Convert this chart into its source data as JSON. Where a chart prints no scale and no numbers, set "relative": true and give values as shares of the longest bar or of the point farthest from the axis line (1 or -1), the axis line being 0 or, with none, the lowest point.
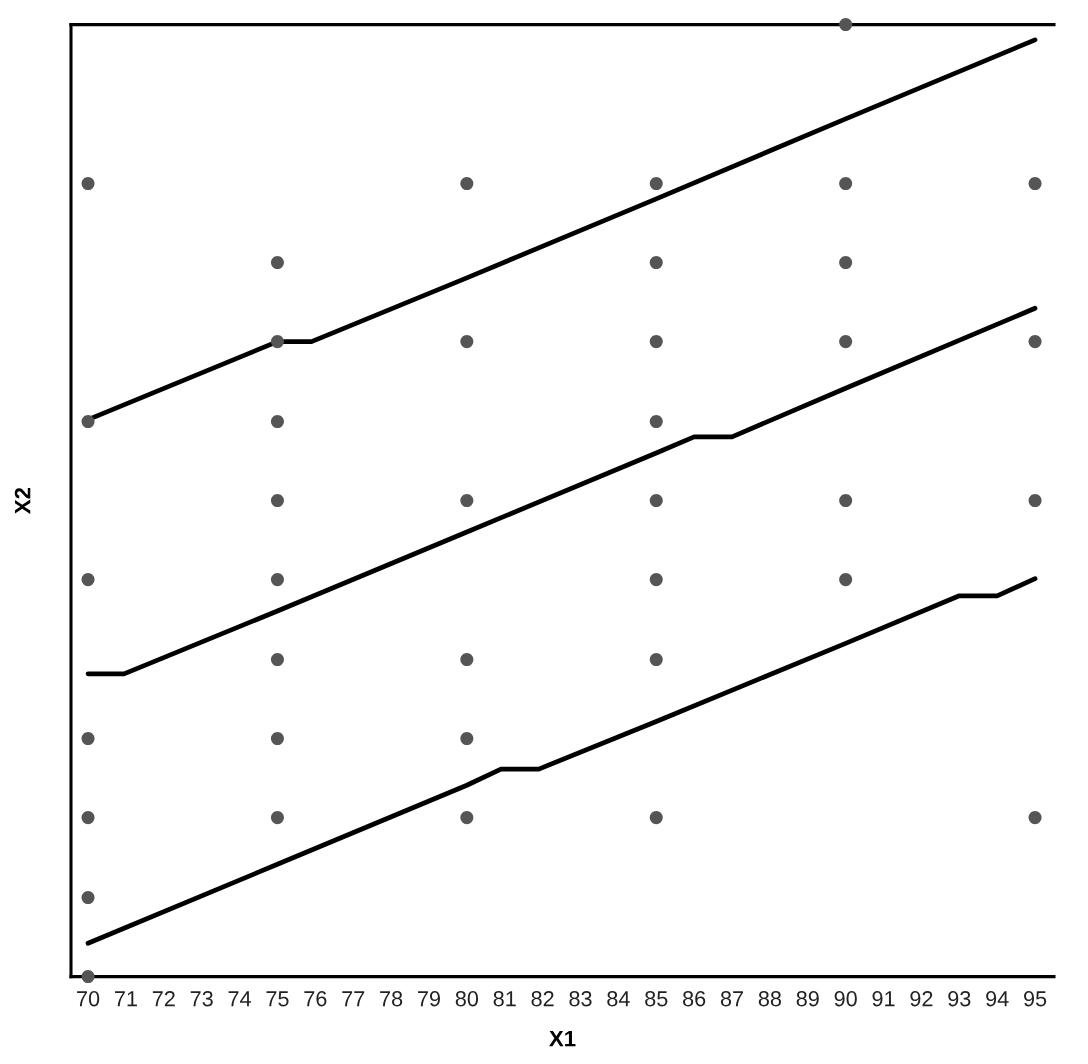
{
  "chart_data": {
    "type": "scatter",
    "xlabel": "X1",
    "ylabel": "X2",
    "relative": true,
    "tick_labels": "x",
    "xlim": [
      69.55,
      95.5
    ],
    "xticks": [
      70,
      71,
      72,
      73,
      74,
      75,
      76,
      77,
      78,
      79,
      80,
      81,
      82,
      83,
      84,
      85,
      86,
      87,
      88,
      89,
      90,
      91,
      92,
      93,
      94,
      95
    ],
    "series": [
      {
        "color": "#555555",
        "marker": "circle",
        "x": [
          70,
          70,
          70,
          70,
          70,
          70,
          70,
          75,
          75,
          75,
          75,
          75,
          75,
          75,
          75,
          80,
          80,
          80,
          80,
          80,
          80,
          85,
          85,
          85,
          85,
          85,
          85,
          85,
          85,
          90,
          90,
          90,
          90,
          90,
          90,
          95,
          95,
          95,
          95
        ],
        "values": [
          0.833,
          0.583,
          0.417,
          0.25,
          0.167,
          0.083,
          0,
          0.75,
          0.667,
          0.583,
          0.5,
          0.417,
          0.333,
          0.25,
          0.167,
          0.833,
          0.667,
          0.5,
          0.333,
          0.25,
          0.167,
          0.833,
          0.75,
          0.667,
          0.583,
          0.5,
          0.417,
          0.333,
          0.167,
          1,
          0.833,
          0.75,
          0.667,
          0.5,
          0.417,
          0.833,
          0.667,
          0.5,
          0.167
        ]
      },
      {
        "type": "line",
        "color": "#000000",
        "marker": "none",
        "line_style": "solid",
        "x": [
          70,
          75,
          75.9,
          80,
          85,
          90,
          95
        ],
        "values": [
          0.585,
          0.667,
          0.667,
          0.734,
          0.817,
          0.901,
          0.984
        ]
      },
      {
        "type": "line",
        "color": "#000000",
        "marker": "none",
        "line_style": "solid",
        "x": [
          70,
          70.95,
          75,
          80,
          85,
          86,
          87,
          90,
          95
        ],
        "values": [
          0.318,
          0.318,
          0.384,
          0.467,
          0.55,
          0.567,
          0.567,
          0.618,
          0.702
        ]
      },
      {
        "type": "line",
        "color": "#000000",
        "marker": "none",
        "line_style": "solid",
        "x": [
          70,
          75,
          80,
          80.9,
          81.9,
          85,
          90,
          93,
          94,
          95
        ],
        "values": [
          0.035,
          0.118,
          0.201,
          0.218,
          0.218,
          0.268,
          0.35,
          0.4,
          0.4,
          0.418
        ]
      }
    ]
  }
}
